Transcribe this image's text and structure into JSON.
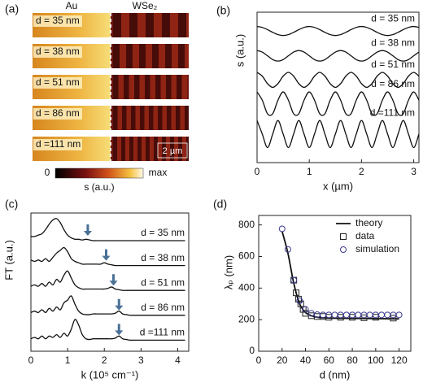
{
  "chart_data": [
    {
      "type": "image",
      "title": "(a)",
      "left_label": "Au",
      "right_label": "WSe₂",
      "rows": [
        "d = 35 nm",
        "d = 38 nm",
        "d = 51 nm",
        "d = 86 nm",
        "d =111 nm"
      ],
      "scale_bar": "2 µm",
      "colorbar_min": "0",
      "colorbar_max": "max",
      "colorbar_label": "s (a.u.)"
    },
    {
      "type": "line",
      "title": "(b)",
      "xlabel": "x (µm)",
      "ylabel": "s (a.u.)",
      "xlim": [
        0,
        3.1
      ],
      "xticks": [
        0,
        1,
        2,
        3
      ],
      "ylim": [
        0,
        10
      ],
      "x": [
        0,
        0.1,
        0.2,
        0.3,
        0.4,
        0.5,
        0.6,
        0.7,
        0.8,
        0.9,
        1,
        1.1,
        1.2,
        1.3,
        1.4,
        1.5,
        1.6,
        1.7,
        1.8,
        1.9,
        2,
        2.1,
        2.2,
        2.3,
        2.4,
        2.5,
        2.6,
        2.7,
        2.8,
        2.9,
        3,
        3.1
      ],
      "series": [
        {
          "name": "d = 35 nm",
          "color": "#111111",
          "values": [
            9.05,
            8.99,
            8.84,
            8.66,
            8.51,
            8.45,
            8.51,
            8.66,
            8.84,
            8.99,
            9.05,
            8.99,
            8.84,
            8.66,
            8.51,
            8.45,
            8.51,
            8.66,
            8.84,
            8.99,
            9.05,
            8.99,
            8.84,
            8.66,
            8.51,
            8.45,
            8.51,
            8.66,
            8.84,
            8.99,
            9.05,
            8.99
          ]
        },
        {
          "name": "d = 38 nm",
          "color": "#111111",
          "values": [
            7.45,
            7.35,
            7.1,
            6.85,
            6.75,
            6.85,
            7.1,
            7.35,
            7.45,
            7.35,
            7.1,
            6.85,
            6.75,
            6.85,
            7.1,
            7.35,
            7.45,
            7.35,
            7.1,
            6.85,
            6.75,
            6.85,
            7.1,
            7.35,
            7.45,
            7.35,
            7.1,
            6.85,
            6.75,
            6.85,
            7.1,
            7.35
          ]
        },
        {
          "name": "d = 51 nm",
          "color": "#111111",
          "values": [
            6.0,
            5.75,
            5.25,
            5.0,
            5.25,
            5.75,
            6.0,
            5.75,
            5.25,
            5.0,
            5.25,
            5.75,
            6.0,
            5.75,
            5.25,
            5.0,
            5.25,
            5.75,
            6.0,
            5.75,
            5.25,
            5.0,
            5.25,
            5.75,
            6.0,
            5.75,
            5.25,
            5.0,
            5.25,
            5.75,
            6.0,
            5.75
          ]
        },
        {
          "name": "d = 86 nm",
          "color": "#111111",
          "values": [
            4.7,
            4.15,
            3.25,
            3.25,
            4.15,
            4.7,
            4.15,
            3.25,
            3.25,
            4.15,
            4.7,
            4.15,
            3.25,
            3.25,
            4.15,
            4.7,
            4.15,
            3.25,
            3.25,
            4.15,
            4.7,
            4.15,
            3.25,
            3.25,
            4.15,
            4.7,
            4.15,
            3.25,
            3.25,
            4.15,
            4.7,
            4.15
          ]
        },
        {
          "name": "d =111 nm",
          "color": "#111111",
          "values": [
            2.8,
            1.9,
            1.0,
            1.9,
            2.8,
            1.9,
            1.0,
            1.9,
            2.8,
            1.9,
            1.0,
            1.9,
            2.8,
            1.9,
            1.0,
            1.9,
            2.8,
            1.9,
            1.0,
            1.9,
            2.8,
            1.9,
            1.0,
            1.9,
            2.8,
            1.9,
            1.0,
            1.9,
            2.8,
            1.9,
            1.0,
            1.9
          ]
        }
      ]
    },
    {
      "type": "line",
      "title": "(c)",
      "xlabel": "k (10⁵ cm⁻¹)",
      "ylabel": "FT (a.u.)",
      "xlim": [
        0,
        4.3
      ],
      "xticks": [
        0,
        1,
        2,
        3,
        4
      ],
      "ylim": [
        0,
        10
      ],
      "arrow_color": "#4a7196",
      "arrows": [
        1.55,
        2.05,
        2.25,
        2.4,
        2.4
      ],
      "x": [
        0,
        0.1,
        0.2,
        0.3,
        0.4,
        0.5,
        0.6,
        0.7,
        0.8,
        0.9,
        1,
        1.1,
        1.2,
        1.3,
        1.4,
        1.5,
        1.6,
        1.7,
        1.8,
        1.9,
        2,
        2.1,
        2.2,
        2.3,
        2.4,
        2.5,
        2.6,
        2.7,
        2.8,
        2.9,
        3,
        3.1,
        3.2,
        3.3,
        3.4,
        3.5,
        3.6,
        3.7,
        3.8,
        3.9,
        4,
        4.1,
        4.2
      ],
      "series": [
        {
          "name": "d = 35 nm",
          "color": "#111111",
          "values": [
            8.3,
            8.3,
            8.4,
            8.5,
            8.8,
            9.2,
            9.5,
            9.6,
            9.3,
            8.8,
            8.4,
            8.2,
            8.1,
            8.1,
            8.05,
            8.1,
            8.05,
            8,
            8,
            8,
            8,
            8,
            8,
            8,
            8,
            8,
            8,
            8,
            8,
            8,
            8,
            8,
            8,
            8,
            8,
            8,
            8,
            8,
            8,
            8,
            8,
            8,
            8
          ]
        },
        {
          "name": "d = 38 nm",
          "color": "#111111",
          "values": [
            6.6,
            6.5,
            6.6,
            6.5,
            6.7,
            6.5,
            6.8,
            7.1,
            7.3,
            7.5,
            7.2,
            6.7,
            6.5,
            6.4,
            6.3,
            6.3,
            6.3,
            6.3,
            6.3,
            6.3,
            6.4,
            6.3,
            6.25,
            6.2,
            6.2,
            6.2,
            6.2,
            6.2,
            6.2,
            6.2,
            6.2,
            6.2,
            6.2,
            6.2,
            6.2,
            6.2,
            6.2,
            6.2,
            6.2,
            6.2,
            6.2,
            6.2,
            6.2
          ]
        },
        {
          "name": "d = 51 nm",
          "color": "#111111",
          "values": [
            4.7,
            4.8,
            4.7,
            4.9,
            4.7,
            5.0,
            4.8,
            5.2,
            5.0,
            5.5,
            5.8,
            5.3,
            4.8,
            4.6,
            4.5,
            4.5,
            4.5,
            4.5,
            4.5,
            4.5,
            4.5,
            4.55,
            4.65,
            4.5,
            4.45,
            4.4,
            4.4,
            4.4,
            4.4,
            4.4,
            4.4,
            4.4,
            4.4,
            4.4,
            4.4,
            4.4,
            4.4,
            4.4,
            4.4,
            4.4,
            4.4,
            4.4,
            4.4
          ]
        },
        {
          "name": "d = 86 nm",
          "color": "#111111",
          "values": [
            2.8,
            2.9,
            2.8,
            3.0,
            2.8,
            3.1,
            2.9,
            3.2,
            3.0,
            3.5,
            3.7,
            4.0,
            3.4,
            2.9,
            2.7,
            2.65,
            2.65,
            2.7,
            2.7,
            2.7,
            2.7,
            2.7,
            2.7,
            2.75,
            2.9,
            2.7,
            2.65,
            2.6,
            2.6,
            2.6,
            2.6,
            2.6,
            2.6,
            2.6,
            2.6,
            2.6,
            2.6,
            2.6,
            2.6,
            2.6,
            2.6,
            2.6,
            2.6
          ]
        },
        {
          "name": "d =111 nm",
          "color": "#111111",
          "values": [
            0.9,
            1.0,
            0.9,
            1.1,
            0.9,
            1.1,
            1.0,
            1.2,
            1.0,
            1.3,
            1.1,
            1.6,
            2.3,
            1.9,
            1.2,
            0.9,
            0.85,
            0.9,
            0.9,
            0.9,
            0.9,
            0.9,
            0.9,
            0.95,
            1.1,
            0.9,
            0.85,
            0.8,
            0.8,
            0.8,
            0.8,
            0.8,
            0.8,
            0.8,
            0.8,
            0.8,
            0.8,
            0.8,
            0.8,
            0.8,
            0.8,
            0.8,
            0.8
          ]
        }
      ]
    },
    {
      "type": "scatter",
      "title": "(d)",
      "xlabel": "d (nm)",
      "ylabel": "λₚ (nm)",
      "xlim": [
        0,
        130
      ],
      "xticks": [
        0,
        20,
        40,
        60,
        80,
        100,
        120
      ],
      "ylim": [
        0,
        860
      ],
      "yticks": [
        0,
        200,
        400,
        600,
        800
      ],
      "legend": "upper right",
      "series": [
        {
          "name": "theory",
          "marker": "line",
          "color": "#111111",
          "x": [
            20,
            25,
            30,
            35,
            40,
            45,
            50,
            60,
            80,
            120
          ],
          "values": [
            760,
            620,
            430,
            300,
            245,
            225,
            215,
            210,
            208,
            205
          ]
        },
        {
          "name": "data",
          "marker": "square",
          "color": "#222222",
          "x": [
            30,
            32,
            34,
            36,
            38,
            40,
            45,
            50,
            55,
            60,
            70,
            80,
            90,
            100,
            115
          ],
          "values": [
            450,
            370,
            330,
            300,
            265,
            240,
            225,
            220,
            220,
            215,
            215,
            215,
            212,
            215,
            210
          ]
        },
        {
          "name": "simulation",
          "marker": "circle",
          "color": "#3b3b8f",
          "x": [
            20,
            25,
            30,
            35,
            40,
            45,
            50,
            55,
            60,
            65,
            70,
            75,
            80,
            85,
            90,
            95,
            100,
            105,
            110,
            115,
            120
          ],
          "values": [
            775,
            645,
            450,
            320,
            265,
            240,
            232,
            230,
            230,
            230,
            230,
            230,
            230,
            230,
            230,
            230,
            230,
            230,
            230,
            230,
            230
          ]
        }
      ]
    }
  ]
}
